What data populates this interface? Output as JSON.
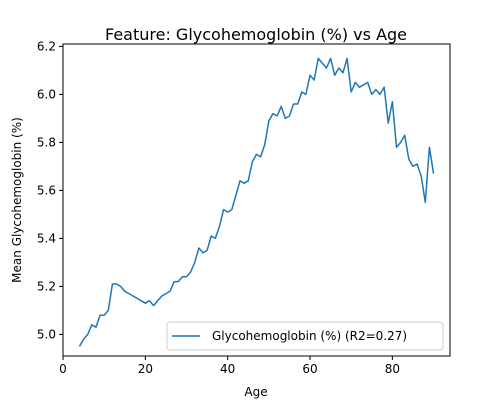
{
  "chart_data": {
    "type": "line",
    "title": "Feature: Glycohemoglobin (%) vs Age",
    "xlabel": "Age",
    "ylabel": "Mean Glycohemoglobin (%)",
    "xlim": [
      0,
      94
    ],
    "ylim": [
      4.91,
      6.21
    ],
    "xticks": [
      0,
      20,
      40,
      60,
      80
    ],
    "yticks": [
      5.0,
      5.2,
      5.4,
      5.6,
      5.8,
      6.0,
      6.2
    ],
    "ytick_labels": [
      "5.0",
      "5.2",
      "5.4",
      "5.6",
      "5.8",
      "6.0",
      "6.2"
    ],
    "grid": false,
    "legend_position": "lower-right",
    "series": [
      {
        "name": "Glycohemoglobin (%) (R2=0.27)",
        "color": "#1f77b4",
        "x": [
          4,
          5,
          6,
          7,
          8,
          9,
          10,
          11,
          12,
          13,
          14,
          15,
          16,
          17,
          18,
          19,
          20,
          21,
          22,
          23,
          24,
          25,
          26,
          27,
          28,
          29,
          30,
          31,
          32,
          33,
          34,
          35,
          36,
          37,
          38,
          39,
          40,
          41,
          42,
          43,
          44,
          45,
          46,
          47,
          48,
          49,
          50,
          51,
          52,
          53,
          54,
          55,
          56,
          57,
          58,
          59,
          60,
          61,
          62,
          63,
          64,
          65,
          66,
          67,
          68,
          69,
          70,
          71,
          72,
          73,
          74,
          75,
          76,
          77,
          78,
          79,
          80,
          81,
          82,
          83,
          84,
          85,
          86,
          87,
          88,
          89,
          90
        ],
        "y": [
          4.95,
          4.98,
          5.0,
          5.04,
          5.03,
          5.08,
          5.08,
          5.1,
          5.21,
          5.21,
          5.2,
          5.18,
          5.17,
          5.16,
          5.15,
          5.14,
          5.13,
          5.14,
          5.12,
          5.14,
          5.16,
          5.17,
          5.18,
          5.22,
          5.22,
          5.24,
          5.24,
          5.26,
          5.3,
          5.36,
          5.34,
          5.35,
          5.41,
          5.4,
          5.45,
          5.52,
          5.51,
          5.52,
          5.58,
          5.64,
          5.63,
          5.64,
          5.72,
          5.75,
          5.74,
          5.79,
          5.89,
          5.92,
          5.91,
          5.95,
          5.9,
          5.91,
          5.96,
          5.96,
          6.01,
          6.0,
          6.08,
          6.06,
          6.15,
          6.13,
          6.11,
          6.15,
          6.08,
          6.11,
          6.09,
          6.15,
          6.01,
          6.05,
          6.03,
          6.04,
          6.05,
          6.0,
          6.02,
          6.0,
          6.03,
          5.88,
          5.97,
          5.78,
          5.8,
          5.83,
          5.73,
          5.7,
          5.71,
          5.66,
          5.55,
          5.78,
          5.67
        ]
      }
    ]
  }
}
